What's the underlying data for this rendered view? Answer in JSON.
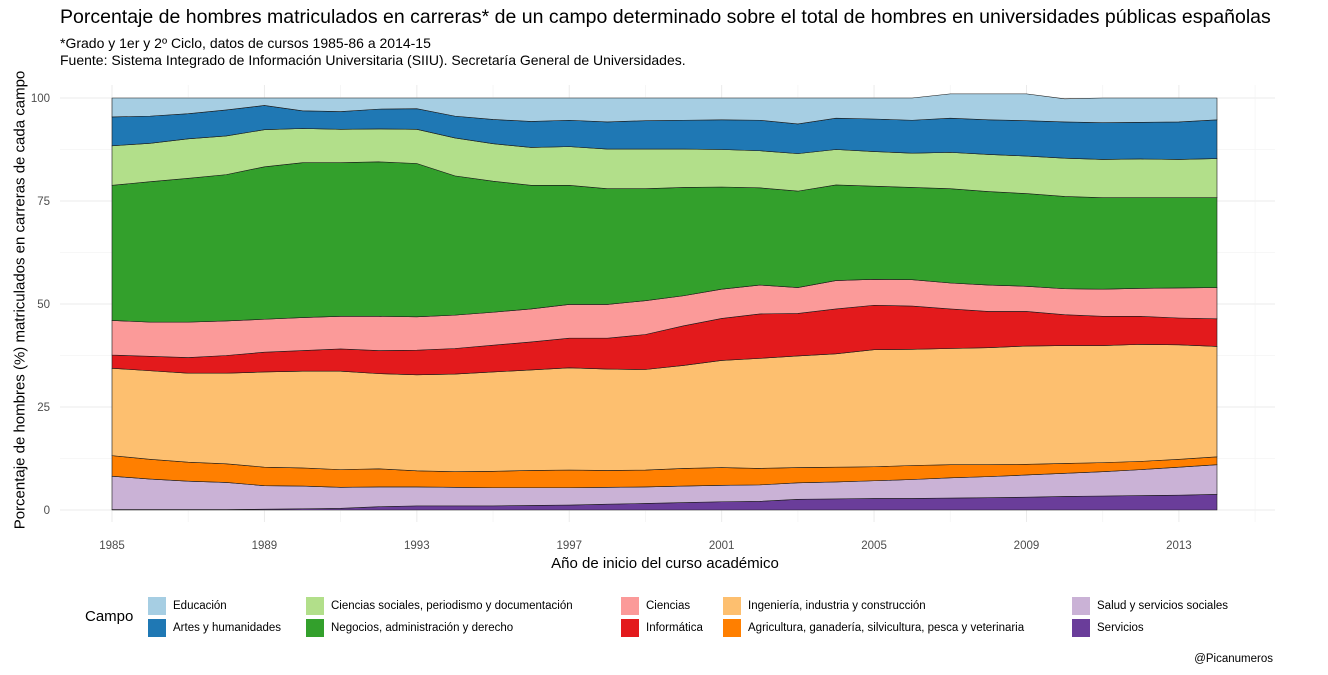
{
  "header": {
    "title": "Porcentaje de hombres matriculados en carreras* de un campo determinado sobre el total de hombres en universidades públicas españolas",
    "subtitle_line1": "*Grado y 1er y 2º Ciclo, datos de cursos 1985-86 a 2014-15",
    "subtitle_line2": "Fuente: Sistema Integrado de Información Universitaria (SIIU). Secretaría General de Universidades."
  },
  "credit": "@Picanumeros",
  "legend": {
    "title": "Campo",
    "placement": "bottom"
  },
  "chart_data": {
    "type": "area",
    "stacked": true,
    "title": "Porcentaje de hombres matriculados en carreras* de un campo determinado sobre el total de hombres en universidades públicas españolas",
    "xlabel": "Año de inicio del curso académico",
    "ylabel": "Porcentaje de hombres (%) matriculados en carreras de cada campo",
    "xlim": [
      1985,
      2014
    ],
    "ylim": [
      0,
      100
    ],
    "x_ticks": [
      1985,
      1989,
      1993,
      1997,
      2001,
      2005,
      2009,
      2013
    ],
    "y_ticks": [
      0,
      25,
      50,
      75,
      100
    ],
    "grid": true,
    "x": [
      1985,
      1986,
      1987,
      1988,
      1989,
      1990,
      1991,
      1992,
      1993,
      1994,
      1995,
      1996,
      1997,
      1998,
      1999,
      2000,
      2001,
      2002,
      2003,
      2004,
      2005,
      2006,
      2007,
      2008,
      2009,
      2010,
      2011,
      2012,
      2013,
      2014
    ],
    "series": [
      {
        "name": "Servicios",
        "color": "#6a3d9a",
        "values": [
          0.1,
          0.1,
          0.1,
          0.1,
          0.2,
          0.3,
          0.4,
          0.8,
          1.0,
          1.0,
          1.0,
          1.1,
          1.2,
          1.4,
          1.6,
          1.8,
          2.0,
          2.1,
          2.6,
          2.7,
          2.8,
          2.8,
          2.9,
          3.0,
          3.1,
          3.3,
          3.4,
          3.5,
          3.6,
          3.8
        ]
      },
      {
        "name": "Salud y servicios sociales",
        "color": "#cab2d6",
        "values": [
          8.1,
          7.4,
          6.9,
          6.6,
          5.7,
          5.5,
          5.1,
          4.8,
          4.6,
          4.5,
          4.4,
          4.3,
          4.2,
          4.1,
          4.0,
          4.0,
          4.0,
          4.0,
          4.0,
          4.1,
          4.3,
          4.6,
          4.9,
          5.1,
          5.4,
          5.6,
          5.9,
          6.3,
          6.8,
          7.2
        ]
      },
      {
        "name": "Agricultura, ganadería, silvicultura, pesca y veterinaria",
        "color": "#ff7f00",
        "values": [
          5.0,
          4.8,
          4.6,
          4.5,
          4.5,
          4.4,
          4.3,
          4.4,
          3.9,
          3.8,
          4.0,
          4.2,
          4.3,
          4.1,
          4.1,
          4.3,
          4.3,
          4.0,
          3.7,
          3.6,
          3.4,
          3.4,
          3.2,
          2.9,
          2.6,
          2.4,
          2.2,
          2.0,
          1.9,
          1.9
        ]
      },
      {
        "name": "Ingeniería, industria y construcción",
        "color": "#fdbf6f",
        "values": [
          21.2,
          21.5,
          21.6,
          22.0,
          23.1,
          23.5,
          23.9,
          23.1,
          23.3,
          23.7,
          24.1,
          24.4,
          24.8,
          24.6,
          24.4,
          25.0,
          26.0,
          26.7,
          27.1,
          27.5,
          28.4,
          28.2,
          28.2,
          28.4,
          28.7,
          28.6,
          28.4,
          28.4,
          27.8,
          26.8
        ]
      },
      {
        "name": "Informática",
        "color": "#e31a1c",
        "values": [
          3.2,
          3.5,
          3.8,
          4.3,
          4.8,
          5.0,
          5.4,
          5.6,
          6.0,
          6.2,
          6.5,
          6.8,
          7.2,
          7.5,
          8.5,
          9.6,
          10.2,
          10.8,
          10.3,
          10.9,
          10.8,
          10.5,
          9.6,
          8.8,
          8.4,
          7.5,
          7.1,
          6.8,
          6.5,
          6.7
        ]
      },
      {
        "name": "Ciencias",
        "color": "#fb9a99",
        "values": [
          8.4,
          8.3,
          8.6,
          8.4,
          8.0,
          8.0,
          7.9,
          8.3,
          8.1,
          8.1,
          8.0,
          8.0,
          8.2,
          8.2,
          8.2,
          7.3,
          7.1,
          7.0,
          6.3,
          6.9,
          6.3,
          6.4,
          6.3,
          6.4,
          6.1,
          6.3,
          6.6,
          6.8,
          7.3,
          7.6
        ]
      },
      {
        "name": "Negocios, administración y derecho",
        "color": "#33a02c",
        "values": [
          32.8,
          34.1,
          34.9,
          35.5,
          37.0,
          37.6,
          37.3,
          37.5,
          37.2,
          33.8,
          31.8,
          30.0,
          28.9,
          28.1,
          27.2,
          26.3,
          24.8,
          23.6,
          23.4,
          23.2,
          22.6,
          22.4,
          22.9,
          22.7,
          22.5,
          22.4,
          22.2,
          22.0,
          21.9,
          21.8
        ]
      },
      {
        "name": "Ciencias sociales, periodismo y documentación",
        "color": "#b2df8a",
        "values": [
          9.6,
          9.3,
          9.6,
          9.4,
          9.0,
          8.3,
          8.1,
          8.0,
          8.3,
          9.2,
          9.1,
          9.2,
          9.4,
          9.6,
          9.6,
          9.3,
          9.1,
          9.0,
          9.1,
          8.6,
          8.4,
          8.3,
          8.8,
          9.0,
          9.1,
          9.3,
          9.3,
          9.4,
          9.3,
          9.5
        ]
      },
      {
        "name": "Artes y humanidades",
        "color": "#1f78b4",
        "values": [
          7.0,
          6.6,
          6.1,
          6.3,
          5.9,
          4.3,
          4.3,
          4.8,
          5.0,
          5.3,
          5.9,
          6.3,
          6.4,
          6.6,
          6.9,
          7.0,
          7.2,
          7.4,
          7.2,
          7.6,
          7.9,
          8.0,
          8.3,
          8.4,
          8.6,
          8.8,
          8.9,
          8.9,
          9.1,
          9.4
        ]
      },
      {
        "name": "Educación",
        "color": "#a6cee3",
        "values": [
          4.6,
          4.4,
          3.8,
          2.9,
          1.8,
          3.1,
          3.3,
          2.7,
          2.6,
          4.4,
          5.2,
          5.7,
          5.4,
          5.8,
          5.5,
          5.4,
          5.3,
          5.4,
          6.3,
          4.9,
          5.1,
          5.4,
          5.9,
          6.3,
          6.5,
          5.6,
          6.0,
          5.9,
          5.8,
          5.3
        ]
      }
    ]
  }
}
